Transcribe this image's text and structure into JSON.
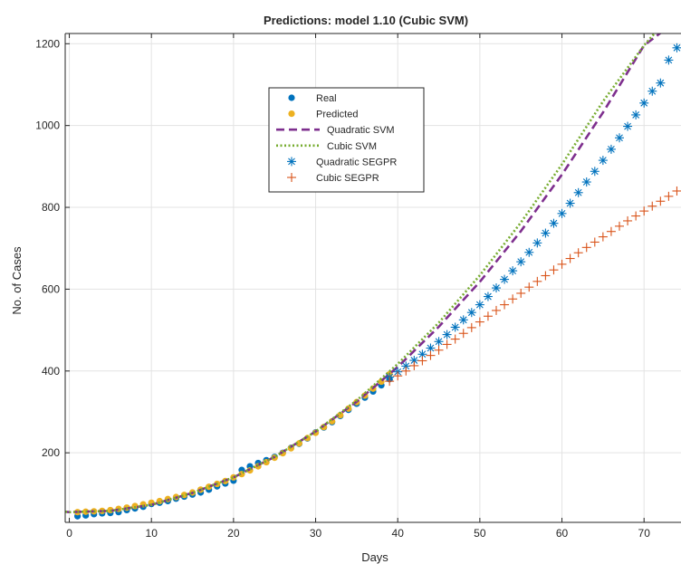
{
  "chart_data": {
    "type": "line",
    "title": "Predictions: model 1.10 (Cubic SVM)",
    "xlabel": "Days",
    "ylabel": "No. of Cases",
    "xlim": [
      -0.5,
      74.5
    ],
    "ylim": [
      30,
      1225
    ],
    "xticks": [
      0,
      10,
      20,
      30,
      40,
      50,
      60,
      70
    ],
    "yticks": [
      200,
      400,
      600,
      800,
      1000,
      1200
    ],
    "grid": true,
    "legend_position": "upper-center",
    "series": [
      {
        "name": "Real",
        "style": "markers-dot",
        "color": "#0072BD",
        "x": [
          1,
          2,
          3,
          4,
          5,
          6,
          7,
          8,
          9,
          10,
          11,
          12,
          13,
          14,
          15,
          16,
          17,
          18,
          19,
          20,
          21,
          22,
          23,
          24,
          25,
          26,
          27,
          28,
          29,
          30,
          31,
          32,
          33,
          34,
          35,
          36,
          37,
          38,
          39
        ],
        "values": [
          45,
          47,
          50,
          52,
          53,
          55,
          60,
          64,
          68,
          75,
          78,
          82,
          88,
          93,
          98,
          103,
          110,
          118,
          125,
          132,
          158,
          167,
          175,
          182,
          190,
          200,
          212,
          222,
          235,
          250,
          262,
          275,
          290,
          305,
          320,
          335,
          350,
          365,
          380
        ]
      },
      {
        "name": "Predicted",
        "style": "markers-dot",
        "color": "#EDB120",
        "x": [
          1,
          2,
          3,
          4,
          5,
          6,
          7,
          8,
          9,
          10,
          11,
          12,
          13,
          14,
          15,
          16,
          17,
          18,
          19,
          20,
          21,
          22,
          23,
          24,
          25,
          26,
          27,
          28,
          29,
          30,
          31,
          32,
          33,
          34,
          35,
          36,
          37,
          38,
          39
        ],
        "values": [
          55,
          56,
          57,
          58,
          60,
          63,
          66,
          70,
          74,
          78,
          82,
          87,
          92,
          97,
          103,
          110,
          117,
          124,
          131,
          140,
          148,
          157,
          167,
          177,
          188,
          199,
          211,
          223,
          236,
          249,
          263,
          277,
          292,
          308,
          324,
          340,
          357,
          374,
          392
        ]
      },
      {
        "name": "Quadratic SVM",
        "style": "dashed-line",
        "color": "#7E2F8E",
        "x": [
          -1,
          0,
          5,
          10,
          15,
          20,
          25,
          30,
          35,
          40,
          45,
          50,
          55,
          60,
          65,
          70,
          72
        ],
        "values": [
          57,
          55,
          58,
          73,
          102,
          140,
          190,
          252,
          325,
          410,
          508,
          618,
          742,
          880,
          1032,
          1196,
          1226
        ]
      },
      {
        "name": "Cubic SVM",
        "style": "dotted-line",
        "color": "#77AC30",
        "x": [
          -1,
          0,
          5,
          10,
          15,
          20,
          25,
          30,
          35,
          40,
          45,
          50,
          55,
          60,
          65,
          70,
          71.5
        ],
        "values": [
          57,
          55,
          58,
          73,
          102,
          140,
          190,
          252,
          328,
          417,
          518,
          634,
          763,
          905,
          1059,
          1196,
          1230
        ]
      },
      {
        "name": "Quadratic SEGPR",
        "style": "markers-asterisk",
        "color": "#0072BD",
        "x": [
          39,
          40,
          41,
          42,
          43,
          44,
          45,
          46,
          47,
          48,
          49,
          50,
          51,
          52,
          53,
          54,
          55,
          56,
          57,
          58,
          59,
          60,
          61,
          62,
          63,
          64,
          65,
          66,
          67,
          68,
          69,
          70,
          71,
          72,
          73,
          74
        ],
        "values": [
          385,
          398,
          412,
          426,
          441,
          456,
          472,
          489,
          507,
          525,
          543,
          562,
          582,
          603,
          624,
          645,
          667,
          690,
          713,
          737,
          761,
          785,
          810,
          836,
          862,
          888,
          915,
          942,
          970,
          998,
          1026,
          1055,
          1084,
          1104,
          1160,
          1190
        ]
      },
      {
        "name": "Cubic SEGPR",
        "style": "markers-plus",
        "color": "#D95319",
        "x": [
          39,
          40,
          41,
          42,
          43,
          44,
          45,
          46,
          47,
          48,
          49,
          50,
          51,
          52,
          53,
          54,
          55,
          56,
          57,
          58,
          59,
          60,
          61,
          62,
          63,
          64,
          65,
          66,
          67,
          68,
          69,
          70,
          71,
          72,
          73,
          74
        ],
        "values": [
          375,
          388,
          400,
          413,
          425,
          438,
          451,
          465,
          478,
          492,
          506,
          520,
          534,
          548,
          562,
          576,
          590,
          605,
          619,
          633,
          647,
          661,
          675,
          689,
          702,
          715,
          728,
          741,
          754,
          767,
          779,
          791,
          803,
          815,
          827,
          840
        ]
      }
    ]
  }
}
